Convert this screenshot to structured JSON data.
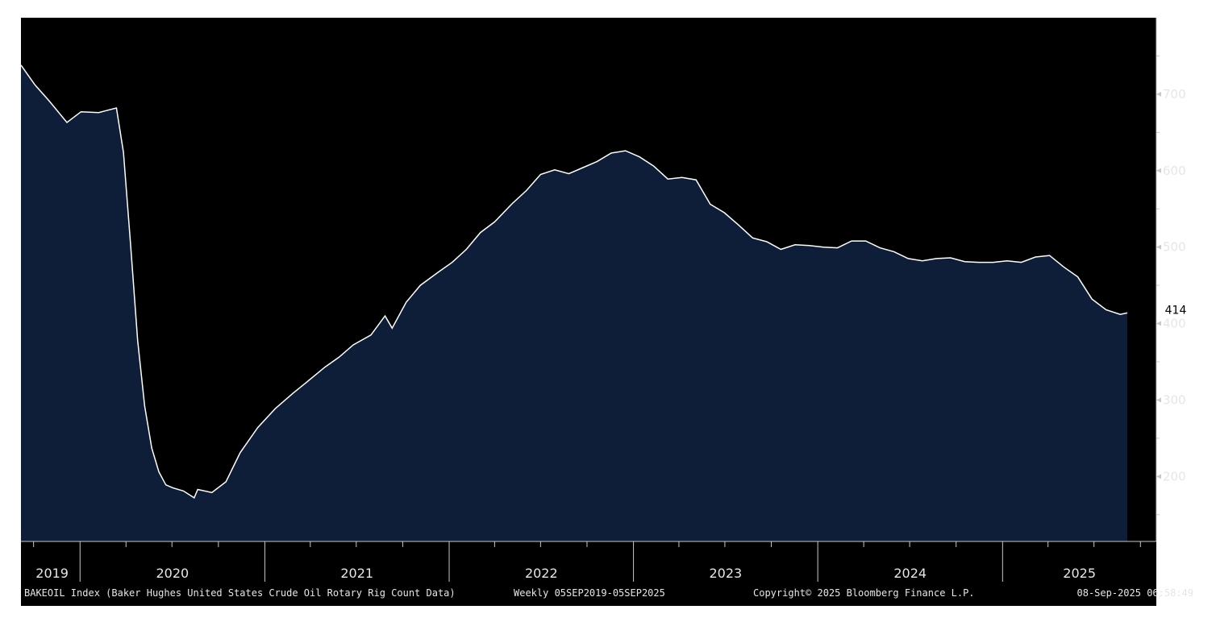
{
  "chart_data": {
    "type": "area",
    "title": "BAKEOIL Index (Baker Hughes United States Crude Oil Rotary Rig Count Data)",
    "frequency_range": "Weekly 05SEP2019-05SEP2025",
    "copyright": "Copyright© 2025 Bloomberg Finance L.P.",
    "timestamp": "08-Sep-2025 06:58:49",
    "x_start": "2019-09-06",
    "x_end": "2025-09-05",
    "ylim": [
      115,
      800
    ],
    "y_ticks": [
      200,
      300,
      400,
      500,
      600,
      700
    ],
    "year_labels": [
      "2019",
      "2020",
      "2021",
      "2022",
      "2023",
      "2024",
      "2025"
    ],
    "last_value": "414",
    "grid": false,
    "colors": {
      "background": "#000000",
      "fill": "#0f1e38",
      "line": "#ffffff",
      "axis": "#c8c8c8",
      "text": "#e6e6e6",
      "badge": "#ffffff"
    },
    "series": [
      {
        "values": [
          [
            "2019-09-06",
            738
          ],
          [
            "2019-10-04",
            712
          ],
          [
            "2019-11-01",
            691
          ],
          [
            "2019-12-06",
            663
          ],
          [
            "2020-01-03",
            677
          ],
          [
            "2020-02-07",
            676
          ],
          [
            "2020-03-13",
            682
          ],
          [
            "2020-03-27",
            624
          ],
          [
            "2020-04-10",
            504
          ],
          [
            "2020-04-24",
            378
          ],
          [
            "2020-05-08",
            292
          ],
          [
            "2020-05-22",
            237
          ],
          [
            "2020-06-05",
            206
          ],
          [
            "2020-06-19",
            189
          ],
          [
            "2020-07-03",
            185
          ],
          [
            "2020-07-24",
            181
          ],
          [
            "2020-08-14",
            172
          ],
          [
            "2020-08-21",
            183
          ],
          [
            "2020-09-18",
            179
          ],
          [
            "2020-10-16",
            193
          ],
          [
            "2020-11-13",
            231
          ],
          [
            "2020-12-18",
            264
          ],
          [
            "2021-01-22",
            289
          ],
          [
            "2021-02-26",
            309
          ],
          [
            "2021-03-26",
            324
          ],
          [
            "2021-04-30",
            343
          ],
          [
            "2021-05-28",
            356
          ],
          [
            "2021-06-25",
            372
          ],
          [
            "2021-07-30",
            385
          ],
          [
            "2021-08-27",
            410
          ],
          [
            "2021-09-10",
            394
          ],
          [
            "2021-10-08",
            428
          ],
          [
            "2021-11-05",
            450
          ],
          [
            "2021-12-10",
            467
          ],
          [
            "2022-01-07",
            480
          ],
          [
            "2022-02-04",
            497
          ],
          [
            "2022-03-04",
            519
          ],
          [
            "2022-04-01",
            533
          ],
          [
            "2022-05-06",
            557
          ],
          [
            "2022-06-03",
            574
          ],
          [
            "2022-07-01",
            595
          ],
          [
            "2022-07-29",
            601
          ],
          [
            "2022-08-26",
            596
          ],
          [
            "2022-09-23",
            604
          ],
          [
            "2022-10-21",
            612
          ],
          [
            "2022-11-18",
            623
          ],
          [
            "2022-12-16",
            626
          ],
          [
            "2023-01-13",
            618
          ],
          [
            "2023-02-10",
            606
          ],
          [
            "2023-03-10",
            589
          ],
          [
            "2023-04-07",
            591
          ],
          [
            "2023-05-05",
            588
          ],
          [
            "2023-06-02",
            556
          ],
          [
            "2023-06-30",
            545
          ],
          [
            "2023-07-28",
            529
          ],
          [
            "2023-08-25",
            512
          ],
          [
            "2023-09-22",
            507
          ],
          [
            "2023-10-20",
            497
          ],
          [
            "2023-11-17",
            503
          ],
          [
            "2023-12-15",
            502
          ],
          [
            "2024-01-12",
            500
          ],
          [
            "2024-02-09",
            499
          ],
          [
            "2024-03-08",
            508
          ],
          [
            "2024-04-05",
            508
          ],
          [
            "2024-05-03",
            499
          ],
          [
            "2024-05-31",
            494
          ],
          [
            "2024-06-28",
            485
          ],
          [
            "2024-07-26",
            482
          ],
          [
            "2024-08-23",
            485
          ],
          [
            "2024-09-20",
            486
          ],
          [
            "2024-10-18",
            481
          ],
          [
            "2024-11-15",
            480
          ],
          [
            "2024-12-13",
            480
          ],
          [
            "2025-01-10",
            482
          ],
          [
            "2025-02-07",
            480
          ],
          [
            "2025-03-07",
            487
          ],
          [
            "2025-04-04",
            489
          ],
          [
            "2025-05-02",
            474
          ],
          [
            "2025-05-30",
            461
          ],
          [
            "2025-06-27",
            432
          ],
          [
            "2025-07-25",
            418
          ],
          [
            "2025-08-22",
            412
          ],
          [
            "2025-09-05",
            414
          ]
        ]
      }
    ]
  }
}
